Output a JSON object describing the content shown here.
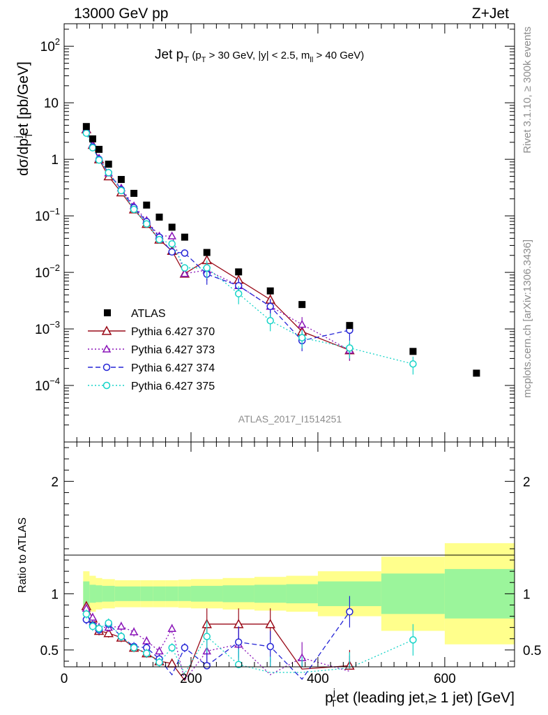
{
  "header": {
    "left": "13000 GeV pp",
    "right": "Z+Jet"
  },
  "title": {
    "main": "Jet p",
    "main_sub": "T",
    "cut_open": " (p",
    "cut_sub": "T",
    "cut_rest": " > 30 GeV, |y| < 2.5, m",
    "cut_sub2": "ll",
    "cut_close": " > 40 GeV)"
  },
  "side_labels": {
    "rivet": "Rivet 3.1.10, ≥ 300k events",
    "mcplots": "mcplots.cern.ch [arXiv:1306.3436]"
  },
  "watermark": "ATLAS_2017_I1514251",
  "axes": {
    "ylabel_top": "dσ/dp",
    "ylabel_top_sub": "T",
    "ylabel_top_sup": "j",
    "ylabel_top_rest": "et [pb/GeV]",
    "ylabel_ratio": "Ratio to ATLAS",
    "xlabel_main": "p",
    "xlabel_sup": "j",
    "xlabel_sub": "T",
    "xlabel_rest": "et (leading jet,≥ 1 jet) [GeV]",
    "x_ticks": [
      "0",
      "200",
      "400",
      "600"
    ],
    "y_top_ticks": [
      {
        "base": "10",
        "exp": "2",
        "value": 100
      },
      {
        "base": "10",
        "exp": "",
        "value": 10
      },
      {
        "base": "1",
        "exp": "",
        "value": 1
      },
      {
        "base": "10",
        "exp": "−1",
        "value": 0.1
      },
      {
        "base": "10",
        "exp": "−2",
        "value": 0.01
      },
      {
        "base": "10",
        "exp": "−3",
        "value": 0.001
      },
      {
        "base": "10",
        "exp": "−4",
        "value": 0.0001
      }
    ],
    "y_ratio_ticks": [
      "0.5",
      "1",
      "2"
    ]
  },
  "legend": [
    {
      "label": "ATLAS",
      "color": "#000000",
      "marker": "square",
      "dash": ""
    },
    {
      "label": "Pythia 6.427 370",
      "color": "#990a18",
      "marker": "triangle",
      "dash": ""
    },
    {
      "label": "Pythia 6.427 373",
      "color": "#8a14b8",
      "marker": "triangle-small",
      "dash": "2,3"
    },
    {
      "label": "Pythia 6.427 374",
      "color": "#2424d6",
      "marker": "circle",
      "dash": "7,4"
    },
    {
      "label": "Pythia 6.427 375",
      "color": "#16d4c8",
      "marker": "circle",
      "dash": "2,3"
    }
  ],
  "chart_data": {
    "type": "scatter",
    "title": "Jet pT (pT > 30 GeV, |y| < 2.5, mll > 40 GeV)",
    "xlabel": "pTjet (leading jet, >= 1 jet) [GeV]",
    "ylabel": "dsigma/dpTjet [pb/GeV]",
    "xlim": [
      0,
      710
    ],
    "ylim": [
      1e-05,
      250
    ],
    "yscale": "log",
    "ratio_ylim": [
      0.35,
      2.35
    ],
    "x": [
      35,
      45,
      55,
      70,
      90,
      110,
      130,
      150,
      170,
      190,
      225,
      275,
      325,
      375,
      450,
      550,
      650
    ],
    "band_edges": [
      30,
      40,
      50,
      60,
      80,
      100,
      120,
      140,
      160,
      180,
      200,
      250,
      300,
      350,
      400,
      500,
      600,
      710
    ],
    "band_green_halfwidth": [
      0.11,
      0.08,
      0.075,
      0.07,
      0.065,
      0.065,
      0.065,
      0.065,
      0.065,
      0.065,
      0.07,
      0.075,
      0.08,
      0.085,
      0.11,
      0.18,
      0.22
    ],
    "band_yellow_halfwidth": [
      0.2,
      0.16,
      0.14,
      0.13,
      0.12,
      0.12,
      0.12,
      0.12,
      0.12,
      0.125,
      0.13,
      0.14,
      0.15,
      0.16,
      0.2,
      0.33,
      0.45
    ],
    "atlas": [
      3.8,
      2.3,
      1.5,
      0.82,
      0.44,
      0.25,
      0.155,
      0.095,
      0.063,
      0.042,
      0.0225,
      0.0102,
      0.0047,
      0.0027,
      0.00115,
      0.0004,
      0.000165
    ],
    "series": [
      {
        "name": "Pythia 6.427 370",
        "values": [
          3.4,
          1.8,
          1.0,
          0.5,
          0.26,
          0.13,
          0.072,
          0.038,
          0.024,
          0.0095,
          0.0165,
          0.0074,
          0.0033,
          0.0009,
          0.00042,
          null,
          null
        ],
        "ratio": [
          0.89,
          0.78,
          0.67,
          0.65,
          0.61,
          0.52,
          0.47,
          0.4,
          0.38,
          0.23,
          0.73,
          0.73,
          0.73,
          0.33,
          0.36,
          null,
          null
        ]
      },
      {
        "name": "Pythia 6.427 373",
        "values": [
          3.4,
          1.8,
          1.05,
          0.57,
          0.31,
          0.15,
          0.083,
          0.044,
          0.044,
          0.0095,
          0.011,
          0.0058,
          0.0025,
          0.0012,
          0.00042,
          null,
          null
        ],
        "ratio": [
          0.87,
          0.79,
          0.7,
          0.7,
          0.71,
          0.66,
          0.58,
          0.49,
          0.69,
          0.23,
          0.49,
          0.55,
          0.28,
          0.43,
          0.31,
          null,
          null
        ]
      },
      {
        "name": "Pythia 6.427 374",
        "values": [
          3.0,
          1.65,
          1.0,
          0.58,
          0.29,
          0.14,
          0.079,
          0.042,
          0.023,
          0.022,
          0.0093,
          0.0058,
          0.0025,
          0.00062,
          0.00095,
          null,
          null
        ],
        "ratio": [
          0.77,
          0.72,
          0.68,
          0.73,
          0.62,
          0.53,
          0.52,
          0.42,
          0.28,
          0.52,
          0.36,
          0.57,
          0.53,
          0.24,
          0.84,
          null,
          null
        ]
      },
      {
        "name": "Pythia 6.427 375",
        "values": [
          2.9,
          1.6,
          0.97,
          0.58,
          0.28,
          0.13,
          0.072,
          0.038,
          0.032,
          0.012,
          0.012,
          0.0042,
          0.0014,
          0.0007,
          0.00046,
          0.00024,
          null
        ],
        "ratio": [
          0.82,
          0.71,
          0.69,
          0.74,
          0.62,
          0.52,
          0.47,
          0.39,
          0.52,
          0.29,
          0.62,
          0.37,
          0.3,
          0.3,
          0.34,
          0.59,
          null
        ]
      }
    ]
  }
}
